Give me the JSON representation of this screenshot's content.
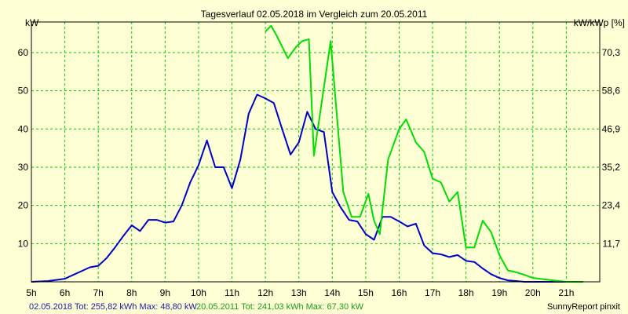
{
  "chart_data": {
    "type": "line",
    "title": "Tagesverlauf 02.05.2018 im Vergleich zum 20.05.2011",
    "ylabel_left": "kW",
    "ylabel_right": "kW/kWp [%]",
    "ylim": [
      0,
      68
    ],
    "xlim": [
      5,
      22
    ],
    "grid": true,
    "x_ticks": [
      "5h",
      "6h",
      "7h",
      "8h",
      "9h",
      "10h",
      "11h",
      "12h",
      "13h",
      "14h",
      "15h",
      "16h",
      "17h",
      "18h",
      "19h",
      "20h",
      "21h"
    ],
    "y_ticks_left": [
      10,
      20,
      30,
      40,
      50,
      60
    ],
    "y_ticks_right": [
      {
        "value": 10,
        "label": "11,7"
      },
      {
        "value": 20,
        "label": "23,4"
      },
      {
        "value": 30,
        "label": "35,2"
      },
      {
        "value": 40,
        "label": "46,9"
      },
      {
        "value": 50,
        "label": "58,6"
      },
      {
        "value": 60,
        "label": "70,3"
      }
    ],
    "series": [
      {
        "name": "02.05.2018",
        "color": "#0000cc",
        "x": [
          5,
          5.5,
          6,
          6.25,
          6.5,
          6.75,
          7,
          7.25,
          7.5,
          7.75,
          8,
          8.25,
          8.5,
          8.75,
          9,
          9.25,
          9.5,
          9.75,
          10,
          10.25,
          10.5,
          10.75,
          11,
          11.25,
          11.5,
          11.75,
          12,
          12.25,
          12.5,
          12.75,
          13,
          13.25,
          13.5,
          13.75,
          14,
          14.25,
          14.5,
          14.75,
          15,
          15.25,
          15.5,
          15.75,
          16,
          16.25,
          16.5,
          16.75,
          17,
          17.25,
          17.5,
          17.75,
          18,
          18.25,
          18.5,
          18.75,
          19,
          19.25,
          19.5,
          19.75,
          20,
          20.5,
          21,
          21.5
        ],
        "values": [
          0,
          0.2,
          0.8,
          1.8,
          2.8,
          3.8,
          4.2,
          6.2,
          9,
          12,
          14.8,
          13.3,
          16.2,
          16.2,
          15.5,
          15.8,
          20,
          26,
          30.5,
          37,
          30,
          30,
          24.5,
          32,
          44,
          49,
          48,
          46.8,
          40,
          33.3,
          36.5,
          44.5,
          40,
          39.2,
          23.5,
          19.5,
          16.2,
          15.8,
          12.5,
          11,
          17,
          17,
          15.8,
          14.5,
          15.2,
          9.5,
          7.5,
          7.2,
          6.5,
          7,
          5.5,
          5.2,
          3.5,
          2,
          1,
          0.4,
          0.2,
          0,
          0,
          0,
          0,
          0
        ]
      },
      {
        "name": "20.05.2011",
        "color": "#00dd00",
        "x": [
          12,
          12.17,
          12.33,
          12.67,
          12.92,
          13.1,
          13.3,
          13.45,
          13.95,
          14.33,
          14.58,
          14.83,
          15.08,
          15.25,
          15.42,
          15.67,
          16,
          16.21,
          16.5,
          16.75,
          17,
          17.25,
          17.5,
          17.75,
          18,
          18.25,
          18.5,
          18.75,
          19,
          19.25,
          19.5,
          19.75,
          20,
          20.5,
          21,
          21.5
        ],
        "values": [
          65.5,
          67,
          64.5,
          58.5,
          61.5,
          63,
          63.5,
          33,
          63,
          23.5,
          17,
          17,
          23,
          16,
          12.5,
          32,
          40,
          42.5,
          36.5,
          34,
          27,
          26,
          21,
          23.5,
          9,
          9,
          16,
          13,
          7,
          3,
          2.5,
          1.8,
          1,
          0.5,
          0,
          0
        ]
      }
    ]
  },
  "footer": {
    "series1_text": "02.05.2018 Tot: 255,82 kWh Max: 48,80 kW",
    "series2_text": "20.05.2011 Tot: 241,03 kWh Max: 67,30 kW",
    "brand": "SunnyReport pinxit"
  }
}
